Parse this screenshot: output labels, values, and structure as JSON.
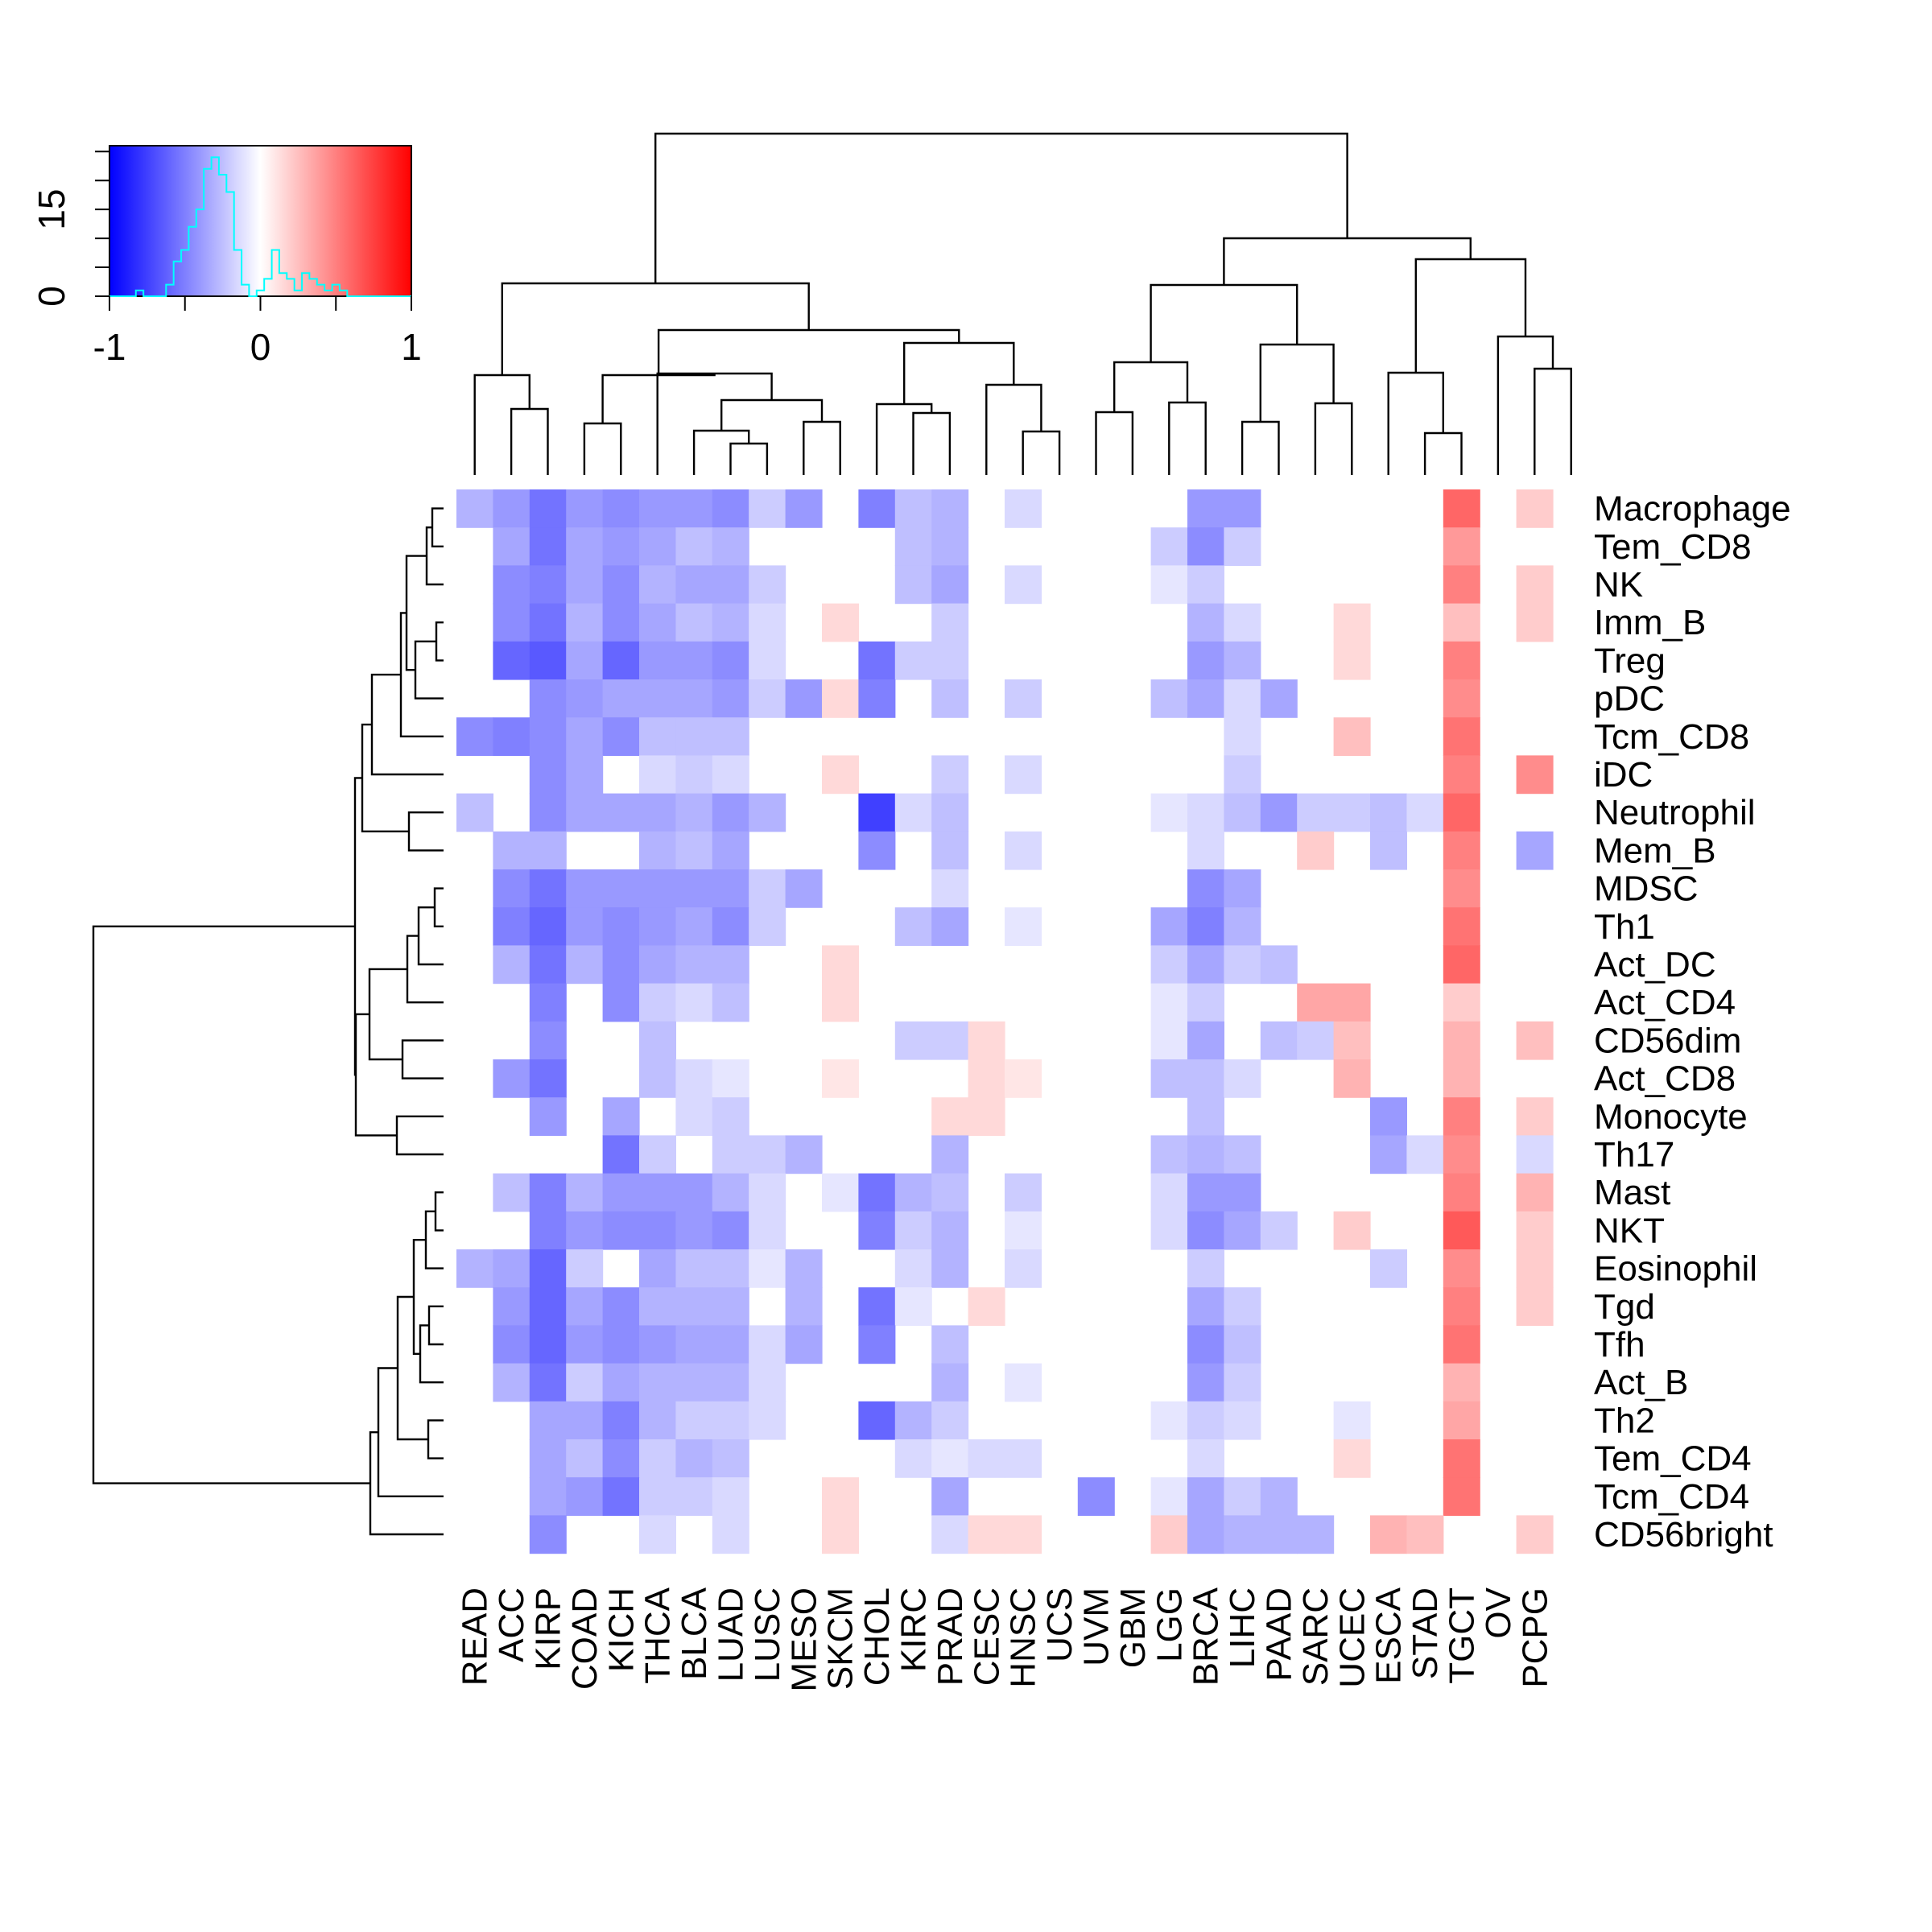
{
  "chart_data": {
    "type": "heatmap",
    "title": "",
    "xlabel": "",
    "ylabel": "",
    "columns": [
      "READ",
      "ACC",
      "KIRP",
      "COAD",
      "KICH",
      "THCA",
      "BLCA",
      "LUAD",
      "LUSC",
      "MESO",
      "SKCM",
      "CHOL",
      "KIRC",
      "PRAD",
      "CESC",
      "HNSC",
      "UCS",
      "UVM",
      "GBM",
      "LGG",
      "BRCA",
      "LIHC",
      "PAAD",
      "SARC",
      "UCEC",
      "ESCA",
      "STAD",
      "TGCT",
      "OV",
      "PCPG"
    ],
    "rows": [
      "Macrophage",
      "Tem_CD8",
      "NK",
      "Imm_B",
      "Treg",
      "pDC",
      "Tcm_CD8",
      "iDC",
      "Neutrophil",
      "Mem_B",
      "MDSC",
      "Th1",
      "Act_DC",
      "Act_CD4",
      "CD56dim",
      "Act_CD8",
      "Monocyte",
      "Th17",
      "Mast",
      "NKT",
      "Eosinophil",
      "Tgd",
      "Tfh",
      "Act_B",
      "Th2",
      "Tem_CD4",
      "Tcm_CD4",
      "CD56bright"
    ],
    "values": [
      [
        -0.3,
        -0.4,
        -0.55,
        -0.4,
        -0.45,
        -0.4,
        -0.4,
        -0.45,
        -0.2,
        -0.4,
        0,
        -0.5,
        -0.25,
        -0.3,
        0,
        -0.15,
        0,
        0,
        0,
        0,
        -0.4,
        -0.4,
        0,
        0,
        0,
        0,
        0,
        0.6,
        0,
        0.2
      ],
      [
        0,
        -0.35,
        -0.55,
        -0.35,
        -0.4,
        -0.35,
        -0.25,
        -0.3,
        0,
        0,
        0,
        0,
        -0.25,
        -0.3,
        0,
        0,
        0,
        0,
        0,
        -0.2,
        -0.45,
        -0.2,
        0,
        0,
        0,
        0,
        0,
        0.4,
        0,
        0
      ],
      [
        0,
        -0.45,
        -0.5,
        -0.35,
        -0.45,
        -0.3,
        -0.35,
        -0.35,
        -0.2,
        0,
        0,
        0,
        -0.25,
        -0.35,
        0,
        -0.15,
        0,
        0,
        0,
        -0.1,
        -0.2,
        0,
        0,
        0,
        0,
        0,
        0,
        0.5,
        0,
        0.2
      ],
      [
        0,
        -0.45,
        -0.55,
        -0.3,
        -0.45,
        -0.35,
        -0.25,
        -0.3,
        -0.15,
        0,
        0.15,
        0,
        0,
        -0.2,
        0,
        0,
        0,
        0,
        0,
        0,
        -0.3,
        -0.15,
        0,
        0,
        0.15,
        0,
        0,
        0.25,
        0,
        0.2
      ],
      [
        0,
        -0.6,
        -0.65,
        -0.35,
        -0.6,
        -0.4,
        -0.4,
        -0.45,
        -0.15,
        0,
        0,
        -0.55,
        -0.2,
        -0.2,
        0,
        0,
        0,
        0,
        0,
        0,
        -0.4,
        -0.3,
        0,
        0,
        0.15,
        0,
        0,
        0.5,
        0,
        0
      ],
      [
        0,
        0,
        -0.45,
        -0.4,
        -0.35,
        -0.35,
        -0.35,
        -0.4,
        -0.2,
        -0.4,
        0.15,
        -0.5,
        0,
        -0.25,
        0,
        -0.2,
        0,
        0,
        0,
        -0.25,
        -0.35,
        -0.15,
        -0.35,
        0,
        0,
        0,
        0,
        0.45,
        0,
        0
      ],
      [
        -0.45,
        -0.5,
        -0.45,
        -0.35,
        -0.45,
        -0.25,
        -0.25,
        -0.25,
        0,
        0,
        0,
        0,
        0,
        0,
        0,
        0,
        0,
        0,
        0,
        0,
        0,
        -0.15,
        0,
        0,
        0.25,
        0,
        0,
        0.55,
        0,
        0
      ],
      [
        0,
        0,
        -0.45,
        -0.35,
        0,
        -0.15,
        -0.2,
        -0.15,
        0,
        0,
        0.15,
        0,
        0,
        -0.2,
        0,
        -0.15,
        0,
        0,
        0,
        0,
        0,
        -0.2,
        0,
        0,
        0,
        0,
        0,
        0.5,
        0,
        0.45
      ],
      [
        -0.25,
        0,
        -0.45,
        -0.35,
        -0.35,
        -0.35,
        -0.3,
        -0.4,
        -0.3,
        0,
        0,
        -0.75,
        -0.15,
        -0.25,
        0,
        0,
        0,
        0,
        0,
        -0.1,
        -0.15,
        -0.25,
        -0.4,
        -0.2,
        -0.2,
        -0.25,
        -0.15,
        0.6,
        0,
        0
      ],
      [
        0,
        -0.3,
        -0.3,
        0,
        0,
        -0.3,
        -0.25,
        -0.35,
        0,
        0,
        0,
        -0.45,
        0,
        -0.25,
        0,
        -0.15,
        0,
        0,
        0,
        0,
        -0.15,
        0,
        0,
        0.2,
        0,
        -0.25,
        0,
        0.5,
        0,
        -0.35
      ],
      [
        0,
        -0.45,
        -0.55,
        -0.4,
        -0.4,
        -0.4,
        -0.4,
        -0.4,
        -0.2,
        -0.35,
        0,
        0,
        0,
        -0.15,
        0,
        0,
        0,
        0,
        0,
        0,
        -0.45,
        -0.35,
        0,
        0,
        0,
        0,
        0,
        0.45,
        0,
        0
      ],
      [
        0,
        -0.5,
        -0.6,
        -0.4,
        -0.45,
        -0.4,
        -0.35,
        -0.45,
        -0.2,
        0,
        0,
        0,
        -0.25,
        -0.35,
        0,
        -0.1,
        0,
        0,
        0,
        -0.35,
        -0.5,
        -0.3,
        0,
        0,
        0,
        0,
        0,
        0.55,
        0,
        0
      ],
      [
        0,
        -0.3,
        -0.55,
        -0.3,
        -0.45,
        -0.35,
        -0.3,
        -0.3,
        0,
        0,
        0.15,
        0,
        0,
        0,
        0,
        0,
        0,
        0,
        0,
        -0.2,
        -0.35,
        -0.2,
        -0.25,
        0,
        0,
        0,
        0,
        0.6,
        0,
        0
      ],
      [
        0,
        0,
        -0.5,
        0,
        -0.45,
        -0.2,
        -0.15,
        -0.25,
        0,
        0,
        0.15,
        0,
        0,
        0,
        0,
        0,
        0,
        0,
        0,
        -0.1,
        -0.2,
        0,
        0,
        0.35,
        0.35,
        0,
        0,
        0.2,
        0,
        0
      ],
      [
        0,
        0,
        -0.45,
        0,
        0,
        -0.25,
        0,
        0,
        0,
        0,
        0,
        0,
        -0.2,
        -0.2,
        0.15,
        0,
        0,
        0,
        0,
        -0.1,
        -0.35,
        0,
        -0.25,
        -0.2,
        0.25,
        0,
        0,
        0.3,
        0,
        0.25
      ],
      [
        0,
        -0.4,
        -0.55,
        0,
        0,
        -0.25,
        -0.15,
        -0.1,
        0,
        0,
        0.1,
        0,
        0,
        0,
        0.15,
        0.1,
        0,
        0,
        0,
        -0.25,
        -0.25,
        -0.15,
        0,
        0,
        0.3,
        0,
        0,
        0.3,
        0,
        0
      ],
      [
        0,
        0,
        -0.4,
        0,
        -0.35,
        0,
        -0.15,
        -0.2,
        0,
        0,
        0,
        0,
        0,
        0.15,
        0.15,
        0,
        0,
        0,
        0,
        0,
        -0.25,
        0,
        0,
        0,
        0,
        -0.4,
        0,
        0.5,
        0,
        0.2
      ],
      [
        0,
        0,
        0,
        0,
        -0.55,
        -0.2,
        0,
        -0.2,
        -0.2,
        -0.3,
        0,
        0,
        0,
        -0.3,
        0,
        0,
        0,
        0,
        0,
        -0.25,
        -0.3,
        -0.25,
        0,
        0,
        0,
        -0.35,
        -0.15,
        0.45,
        0,
        -0.15
      ],
      [
        0,
        -0.25,
        -0.5,
        -0.3,
        -0.4,
        -0.4,
        -0.4,
        -0.3,
        -0.15,
        0,
        -0.1,
        -0.55,
        -0.3,
        -0.25,
        0,
        -0.2,
        0,
        0,
        0,
        -0.15,
        -0.4,
        -0.4,
        0,
        0,
        0,
        0,
        0,
        0.5,
        0,
        0.3
      ],
      [
        0,
        0,
        -0.5,
        -0.4,
        -0.45,
        -0.45,
        -0.4,
        -0.45,
        -0.15,
        0,
        0,
        -0.5,
        -0.2,
        -0.3,
        0,
        -0.1,
        0,
        0,
        0,
        -0.15,
        -0.45,
        -0.35,
        -0.2,
        0,
        0.2,
        0,
        0,
        0.65,
        0,
        0.2
      ],
      [
        -0.3,
        -0.35,
        -0.6,
        -0.2,
        0,
        -0.35,
        -0.25,
        -0.25,
        -0.1,
        -0.3,
        0,
        0,
        -0.15,
        -0.3,
        0,
        -0.15,
        0,
        0,
        0,
        0,
        -0.2,
        0,
        0,
        0,
        0,
        -0.2,
        0,
        0.45,
        0,
        0.2
      ],
      [
        0,
        -0.4,
        -0.6,
        -0.35,
        -0.45,
        -0.3,
        -0.3,
        -0.3,
        0,
        -0.3,
        0,
        -0.55,
        -0.1,
        0,
        0.15,
        0,
        0,
        0,
        0,
        0,
        -0.35,
        -0.2,
        0,
        0,
        0,
        0,
        0,
        0.5,
        0,
        0.2
      ],
      [
        0,
        -0.45,
        -0.6,
        -0.4,
        -0.45,
        -0.4,
        -0.35,
        -0.35,
        -0.15,
        -0.35,
        0,
        -0.5,
        0,
        -0.25,
        0,
        0,
        0,
        0,
        0,
        0,
        -0.45,
        -0.25,
        0,
        0,
        0,
        0,
        0,
        0.55,
        0,
        0
      ],
      [
        0,
        -0.3,
        -0.55,
        -0.2,
        -0.35,
        -0.3,
        -0.3,
        -0.3,
        -0.15,
        0,
        0,
        0,
        0,
        -0.3,
        0,
        -0.1,
        0,
        0,
        0,
        0,
        -0.4,
        -0.2,
        0,
        0,
        0,
        0,
        0,
        0.3,
        0,
        0
      ],
      [
        0,
        0,
        -0.35,
        -0.35,
        -0.5,
        -0.3,
        -0.2,
        -0.2,
        -0.15,
        0,
        0,
        -0.6,
        -0.3,
        -0.2,
        0,
        0,
        0,
        0,
        0,
        -0.1,
        -0.2,
        -0.15,
        0,
        0,
        -0.1,
        0,
        0,
        0.35,
        0,
        0
      ],
      [
        0,
        0,
        -0.35,
        -0.25,
        -0.45,
        -0.2,
        -0.3,
        -0.25,
        0,
        0,
        0,
        0,
        -0.15,
        -0.1,
        -0.15,
        -0.15,
        0,
        0,
        0,
        0,
        -0.15,
        0,
        0,
        0,
        0.15,
        0,
        0,
        0.55,
        0,
        0
      ],
      [
        0,
        0,
        -0.35,
        -0.4,
        -0.55,
        -0.2,
        -0.2,
        -0.15,
        0,
        0,
        0.15,
        0,
        0,
        -0.35,
        0,
        0,
        0,
        -0.45,
        0,
        -0.1,
        -0.35,
        -0.2,
        -0.3,
        0,
        0,
        0,
        0,
        0.55,
        0,
        0
      ],
      [
        0,
        0,
        -0.45,
        0,
        0,
        -0.15,
        0,
        -0.15,
        0,
        0,
        0.15,
        0,
        0,
        -0.15,
        0.15,
        0.15,
        0,
        0,
        0,
        0.2,
        -0.35,
        -0.3,
        -0.3,
        -0.3,
        0,
        0.3,
        0.25,
        0,
        0,
        0.2
      ]
    ],
    "color_scale": {
      "low": "#0000ff",
      "mid": "#ffffff",
      "high": "#ff0000",
      "range": [
        -1,
        1
      ]
    },
    "legend": {
      "position": "top-left",
      "x_ticks": [
        "-1",
        "0",
        "1"
      ],
      "y_ticks": [
        "0",
        "15"
      ],
      "histogram_color": "#00ffff",
      "histogram_bins": [
        -0.8,
        -0.75,
        -0.7,
        -0.65,
        -0.6,
        -0.55,
        -0.5,
        -0.45,
        -0.4,
        -0.35,
        -0.3,
        -0.25,
        -0.2,
        -0.15,
        -0.1,
        -0.05,
        0,
        0.05,
        0.1,
        0.15,
        0.2,
        0.25,
        0.3,
        0.35,
        0.4,
        0.45,
        0.5,
        0.55,
        0.6
      ],
      "histogram_counts": [
        1,
        0,
        0,
        0,
        2,
        6,
        8,
        12,
        15,
        22,
        24,
        21,
        18,
        8,
        2,
        0,
        1,
        3,
        8,
        4,
        3,
        1,
        4,
        3,
        2,
        1,
        2,
        1,
        0
      ]
    },
    "dendrogram_columns": true,
    "dendrogram_rows": true
  }
}
